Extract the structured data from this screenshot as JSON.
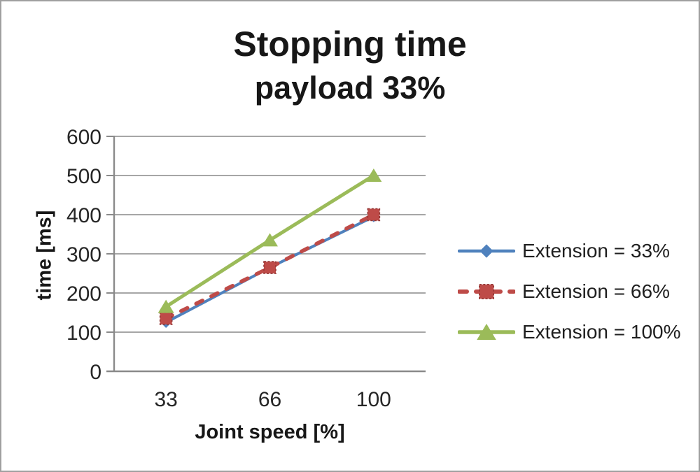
{
  "frame": {
    "background": "#ffffff",
    "border_color": "#a0a0a0"
  },
  "chart_data": {
    "type": "line",
    "title": "Stopping time",
    "subtitle": "payload 33%",
    "xlabel": "Joint speed [%]",
    "ylabel": "time [ms]",
    "categories": [
      "33",
      "66",
      "100"
    ],
    "ylim": [
      0,
      600
    ],
    "ytick_step": 100,
    "grid": true,
    "legend_position": "right",
    "colors": {
      "grid": "#999999",
      "axis": "#8a8a8a",
      "tick_text": "#262626"
    },
    "series": [
      {
        "name": "Extension = 33%",
        "values": [
          125,
          265,
          395
        ],
        "color": "#4F81BD",
        "marker": "diamond",
        "dash": "solid",
        "line_width": 4
      },
      {
        "name": "Extension = 66%",
        "values": [
          135,
          265,
          400
        ],
        "color": "#BE4B48",
        "marker": "square",
        "marker_edge": "#953735",
        "dash": "dashed",
        "line_width": 5.5
      },
      {
        "name": "Extension = 100%",
        "values": [
          165,
          335,
          500
        ],
        "color": "#9BBB59",
        "marker": "triangle",
        "dash": "solid",
        "line_width": 5
      }
    ]
  }
}
